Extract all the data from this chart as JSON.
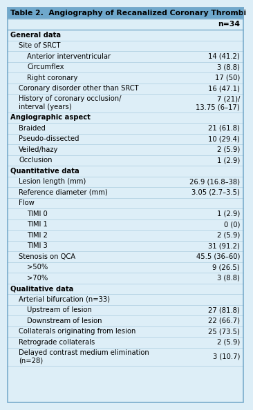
{
  "title": "Table 2.  Angiography of Recanalized Coronary Thrombi",
  "header_col": "n=34",
  "bg_color": "#ddeef7",
  "title_bg": "#6fa8cc",
  "border_color": "#7aaccc",
  "row_line_color": "#aacce0",
  "rows": [
    {
      "label": "General data",
      "value": "",
      "level": 0,
      "bold": true
    },
    {
      "label": "Site of SRCT",
      "value": "",
      "level": 1,
      "bold": false
    },
    {
      "label": "Anterior interventricular",
      "value": "14 (41.2)",
      "level": 2,
      "bold": false
    },
    {
      "label": "Circumflex",
      "value": "3 (8.8)",
      "level": 2,
      "bold": false
    },
    {
      "label": "Right coronary",
      "value": "17 (50)",
      "level": 2,
      "bold": false
    },
    {
      "label": "Coronary disorder other than SRCT",
      "value": "16 (47.1)",
      "level": 1,
      "bold": false
    },
    {
      "label": "History of coronary occlusion/\ninterval (years)",
      "value": "7 (21)/\n13.75 (6–17)",
      "level": 1,
      "bold": false
    },
    {
      "label": "Angiographic aspect",
      "value": "",
      "level": 0,
      "bold": true
    },
    {
      "label": "Braided",
      "value": "21 (61.8)",
      "level": 1,
      "bold": false
    },
    {
      "label": "Pseudo-dissected",
      "value": "10 (29.4)",
      "level": 1,
      "bold": false
    },
    {
      "label": "Veiled/hazy",
      "value": "2 (5.9)",
      "level": 1,
      "bold": false
    },
    {
      "label": "Occlusion",
      "value": "1 (2.9)",
      "level": 1,
      "bold": false
    },
    {
      "label": "Quantitative data",
      "value": "",
      "level": 0,
      "bold": true
    },
    {
      "label": "Lesion length (mm)",
      "value": "26.9 (16.8–38)",
      "level": 1,
      "bold": false
    },
    {
      "label": "Reference diameter (mm)",
      "value": "3.05 (2.7–3.5)",
      "level": 1,
      "bold": false
    },
    {
      "label": "Flow",
      "value": "",
      "level": 1,
      "bold": false
    },
    {
      "label": "TIMI 0",
      "value": "1 (2.9)",
      "level": 2,
      "bold": false
    },
    {
      "label": "TIMI 1",
      "value": "0 (0)",
      "level": 2,
      "bold": false
    },
    {
      "label": "TIMI 2",
      "value": "2 (5.9)",
      "level": 2,
      "bold": false
    },
    {
      "label": "TIMI 3",
      "value": "31 (91.2)",
      "level": 2,
      "bold": false
    },
    {
      "label": "Stenosis on QCA",
      "value": "45.5 (36–60)",
      "level": 1,
      "bold": false
    },
    {
      "label": ">50%",
      "value": "9 (26.5)",
      "level": 2,
      "bold": false
    },
    {
      "label": ">70%",
      "value": "3 (8.8)",
      "level": 2,
      "bold": false
    },
    {
      "label": "Qualitative data",
      "value": "",
      "level": 0,
      "bold": true
    },
    {
      "label": "Arterial bifurcation (n=33)",
      "value": "",
      "level": 1,
      "bold": false
    },
    {
      "label": "Upstream of lesion",
      "value": "27 (81.8)",
      "level": 2,
      "bold": false
    },
    {
      "label": "Downstream of lesion",
      "value": "22 (66.7)",
      "level": 2,
      "bold": false
    },
    {
      "label": "Collaterals originating from lesion",
      "value": "25 (73.5)",
      "level": 1,
      "bold": false
    },
    {
      "label": "Retrograde collaterals",
      "value": "2 (5.9)",
      "level": 1,
      "bold": false
    },
    {
      "label": "Delayed contrast medium elimination\n(n=28)",
      "value": "3 (10.7)",
      "level": 1,
      "bold": false
    }
  ],
  "indent_unit": 12,
  "font_size": 7.2,
  "title_font_size": 7.8,
  "header_font_size": 7.8
}
